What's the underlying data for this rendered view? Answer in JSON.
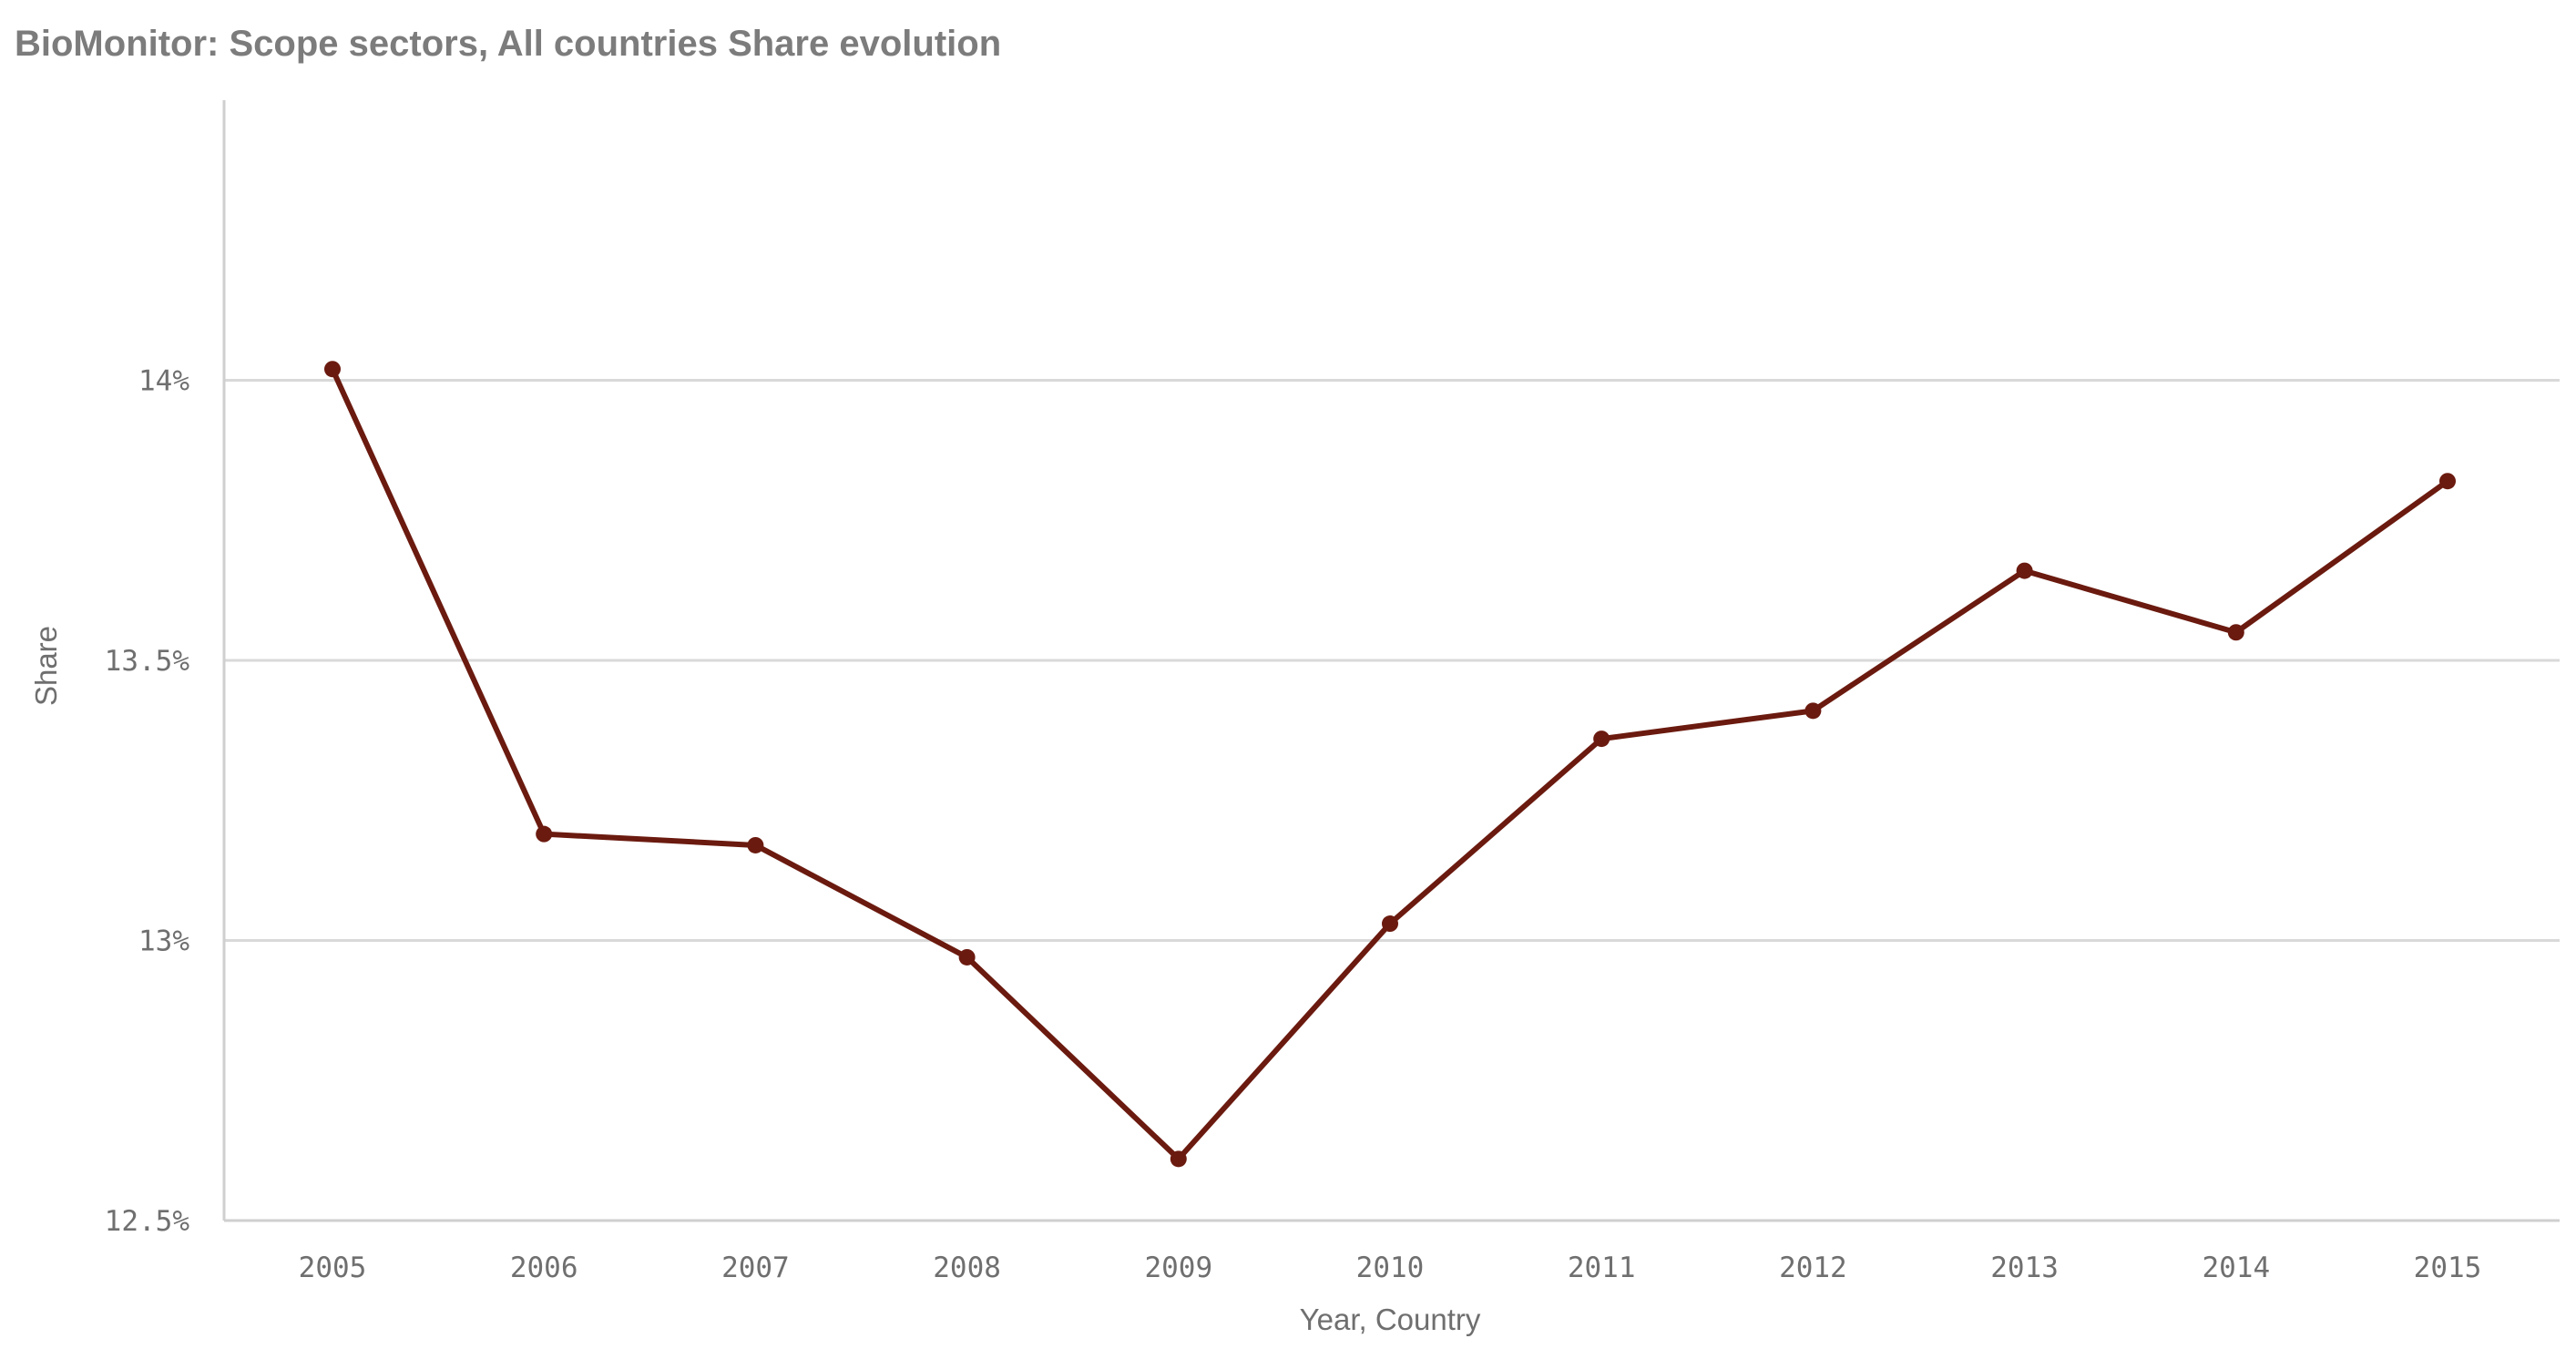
{
  "chart_data": {
    "type": "line",
    "title": "BioMonitor: Scope sectors, All countries Share evolution",
    "xlabel": "Year, Country",
    "ylabel": "Share",
    "ylim": [
      12.5,
      14.5
    ],
    "y_ticks": [
      {
        "value": 12.5,
        "label": "12.5%"
      },
      {
        "value": 13.0,
        "label": "13%"
      },
      {
        "value": 13.5,
        "label": "13.5%"
      },
      {
        "value": 14.0,
        "label": "14%"
      }
    ],
    "categories": [
      "2005",
      "2006",
      "2007",
      "2008",
      "2009",
      "2010",
      "2011",
      "2012",
      "2013",
      "2014",
      "2015"
    ],
    "series": [
      {
        "name": "Share",
        "color": "#6b1a0f",
        "values": [
          14.02,
          13.19,
          13.17,
          12.97,
          12.61,
          13.03,
          13.36,
          13.41,
          13.66,
          13.55,
          13.82
        ]
      }
    ],
    "grid": true
  }
}
